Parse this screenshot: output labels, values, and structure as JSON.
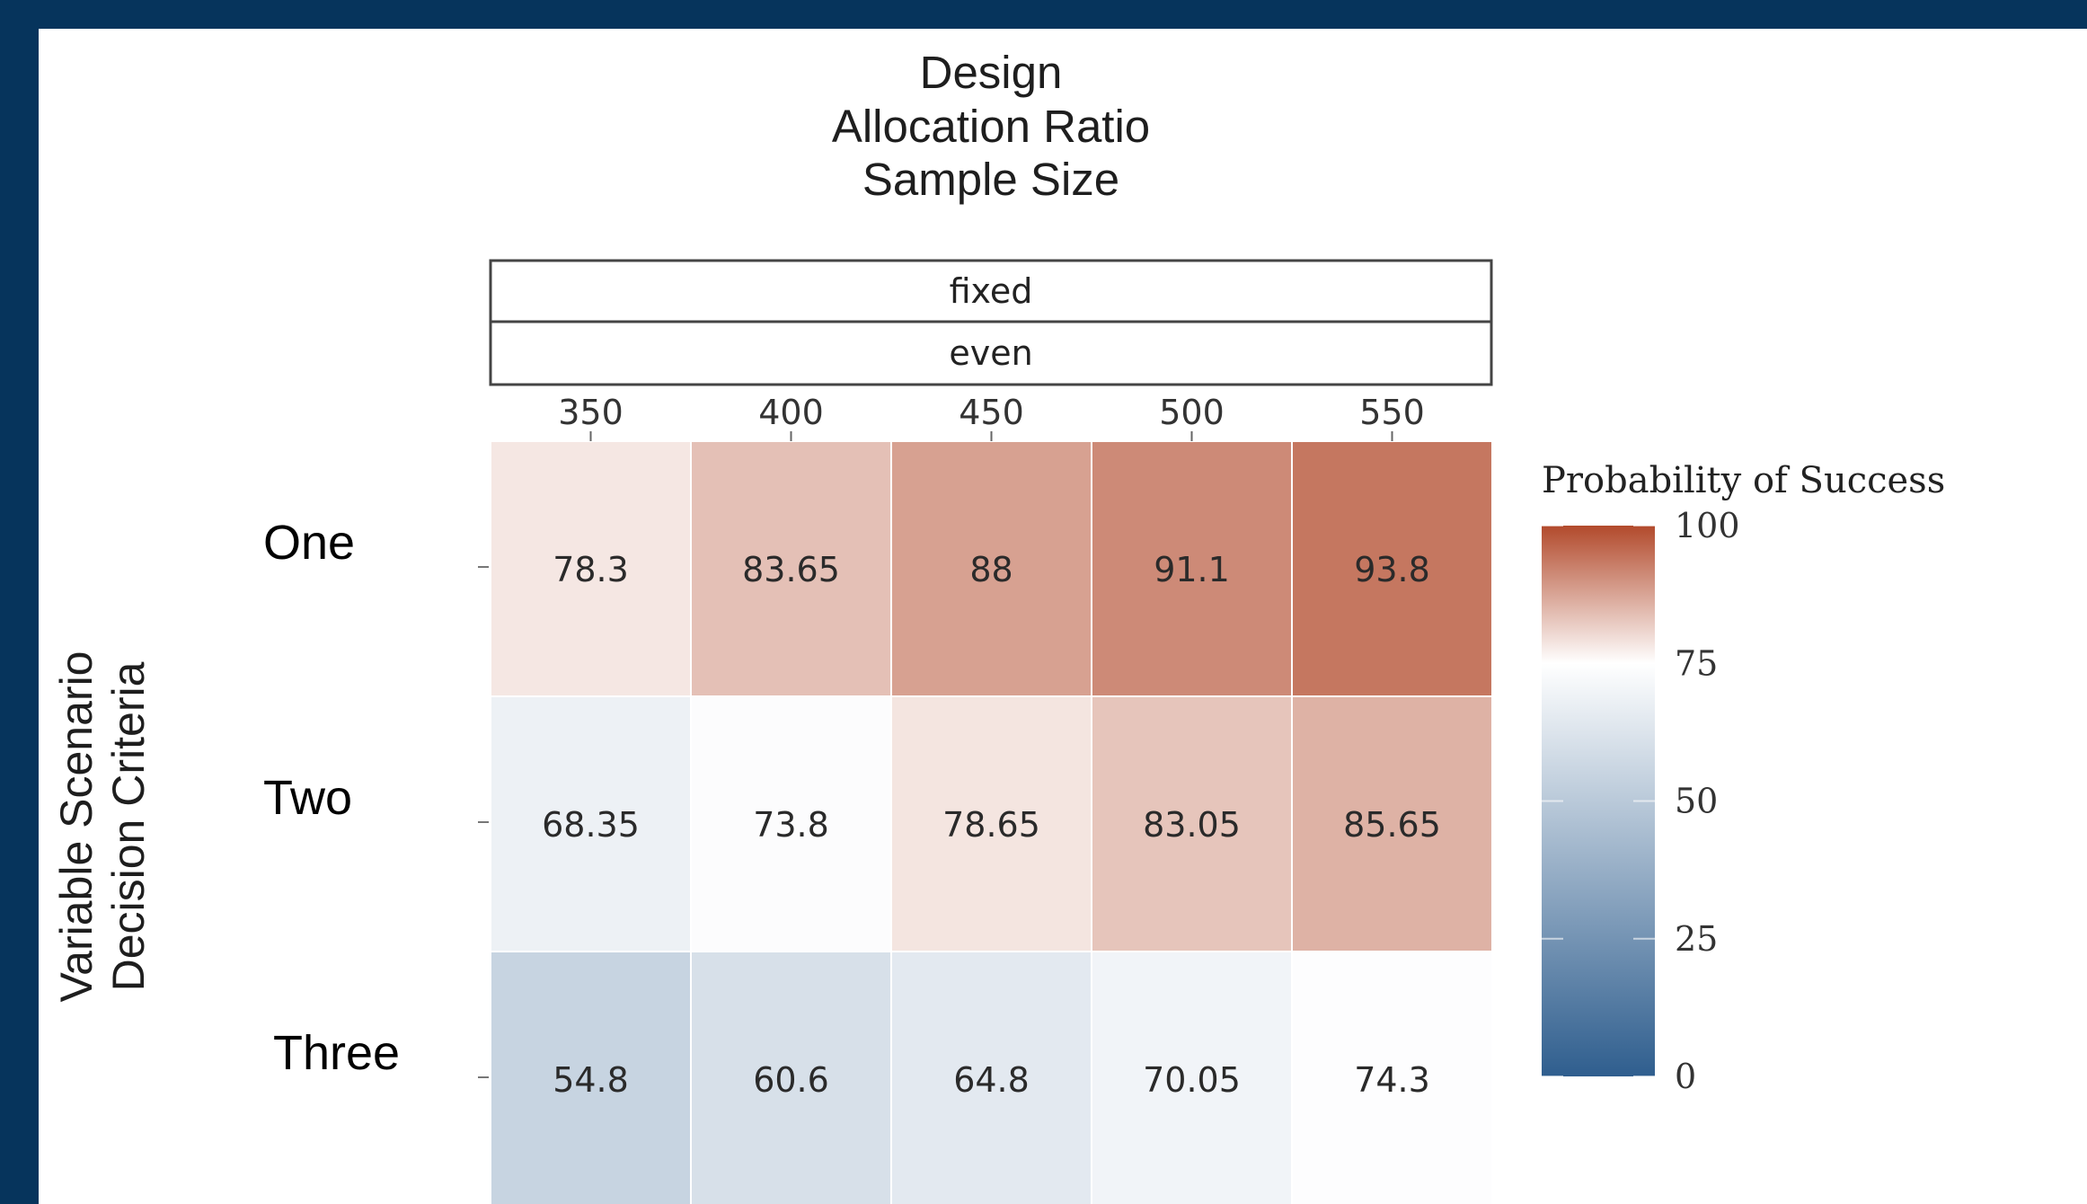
{
  "chart_data": {
    "type": "heatmap",
    "title_lines": [
      "Design",
      "Allocation Ratio",
      "Sample Size"
    ],
    "facet_strips": [
      "fixed",
      "even"
    ],
    "x_categories": [
      "350",
      "400",
      "450",
      "500",
      "550"
    ],
    "y_categories": [
      "One",
      "Two",
      "Three"
    ],
    "ylabel_lines": [
      "Variable Scenario",
      "Decision Criteria"
    ],
    "values": [
      [
        78.3,
        83.65,
        88,
        91.1,
        93.8
      ],
      [
        68.35,
        73.8,
        78.65,
        83.05,
        85.65
      ],
      [
        54.8,
        60.6,
        64.8,
        70.05,
        74.3
      ]
    ],
    "value_labels": [
      [
        "78.3",
        "83.65",
        "88",
        "91.1",
        "93.8"
      ],
      [
        "68.35",
        "73.8",
        "78.65",
        "83.05",
        "85.65"
      ],
      [
        "54.8",
        "60.6",
        "64.8",
        "70.05",
        "74.3"
      ]
    ],
    "legend": {
      "title": "Probability of Success",
      "range": [
        0,
        100
      ],
      "midpoint": 75,
      "ticks": [
        "100",
        "75",
        "50",
        "25",
        "0"
      ],
      "low_color": "#2f5e8e",
      "mid_color": "#ffffff",
      "high_color": "#b24a2c"
    }
  }
}
